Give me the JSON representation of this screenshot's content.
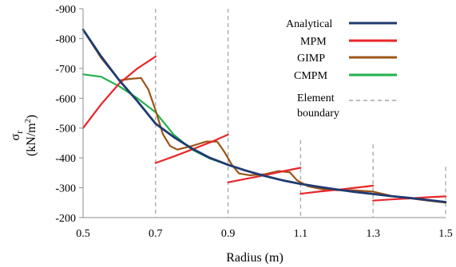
{
  "chart_data": {
    "type": "line",
    "title": "",
    "xlabel": "Radius (m)",
    "ylabel": {
      "symbol": "σ",
      "subscript": "r",
      "units_open": "(kN/m",
      "units_power": "2",
      "units_close": ")"
    },
    "xlim": [
      0.5,
      1.5
    ],
    "ylim": [
      -200,
      -900
    ],
    "x_ticks": [
      "0.5",
      "0.7",
      "0.9",
      "1.1",
      "1.3",
      "1.5"
    ],
    "y_ticks": [
      "-200",
      "-300",
      "-400",
      "-500",
      "-600",
      "-700",
      "-800",
      "-900"
    ],
    "grid": false,
    "legend_position": "top-right",
    "series": [
      {
        "name": "Analytical",
        "color": "#1f3b70",
        "style": "solid",
        "x": [
          0.5,
          0.55,
          0.6,
          0.65,
          0.7,
          0.75,
          0.8,
          0.85,
          0.9,
          0.95,
          1.0,
          1.05,
          1.1,
          1.15,
          1.2,
          1.25,
          1.3,
          1.35,
          1.4,
          1.45,
          1.5
        ],
        "y": [
          -830,
          -740,
          -660,
          -590,
          -515,
          -470,
          -432,
          -400,
          -377,
          -357,
          -340,
          -325,
          -313,
          -303,
          -294,
          -286,
          -279,
          -272,
          -266,
          -259,
          -252
        ]
      },
      {
        "name": "MPM",
        "color": "#e8262a",
        "style": "solid",
        "segments": [
          {
            "x": [
              0.5,
              0.55,
              0.6,
              0.65,
              0.7
            ],
            "y": [
              -500,
              -580,
              -650,
              -700,
              -740
            ]
          },
          {
            "x": [
              0.7,
              0.75,
              0.8,
              0.85,
              0.9
            ],
            "y": [
              -383,
              -405,
              -428,
              -452,
              -478
            ]
          },
          {
            "x": [
              0.9,
              0.95,
              1.0,
              1.05,
              1.1
            ],
            "y": [
              -318,
              -330,
              -342,
              -355,
              -367
            ]
          },
          {
            "x": [
              1.1,
              1.15,
              1.2,
              1.25,
              1.3
            ],
            "y": [
              -280,
              -287,
              -293,
              -300,
              -307
            ]
          },
          {
            "x": [
              1.3,
              1.35,
              1.4,
              1.45,
              1.5
            ],
            "y": [
              -257,
              -261,
              -264,
              -268,
              -271
            ]
          }
        ]
      },
      {
        "name": "GIMP",
        "color": "#9b5518",
        "style": "solid",
        "x": [
          0.5,
          0.55,
          0.6,
          0.63,
          0.66,
          0.68,
          0.7,
          0.72,
          0.74,
          0.76,
          0.8,
          0.84,
          0.87,
          0.89,
          0.91,
          0.93,
          0.96,
          1.0,
          1.04,
          1.07,
          1.09,
          1.12,
          1.16,
          1.2,
          1.25,
          1.3,
          1.35,
          1.4,
          1.45,
          1.5
        ],
        "y": [
          -830,
          -735,
          -660,
          -665,
          -668,
          -630,
          -560,
          -480,
          -440,
          -428,
          -440,
          -455,
          -455,
          -420,
          -378,
          -348,
          -342,
          -345,
          -356,
          -352,
          -325,
          -305,
          -295,
          -292,
          -291,
          -287,
          -273,
          -265,
          -257,
          -250
        ]
      },
      {
        "name": "CMPM",
        "color": "#22b24c",
        "style": "solid",
        "x": [
          0.5,
          0.55,
          0.6,
          0.65,
          0.7,
          0.75,
          0.8,
          0.85,
          0.9,
          0.95,
          1.0,
          1.05,
          1.1,
          1.15,
          1.2,
          1.25,
          1.3,
          1.35,
          1.4,
          1.45,
          1.5
        ],
        "y": [
          -680,
          -672,
          -640,
          -600,
          -553,
          -478,
          -428,
          -398,
          -377,
          -357,
          -340,
          -325,
          -313,
          -303,
          -294,
          -286,
          -279,
          -272,
          -266,
          -259,
          -252
        ]
      }
    ],
    "element_boundaries": {
      "name": "Element boundary",
      "name_lines": [
        "Element",
        "boundary"
      ],
      "color": "#a6a6a6",
      "style": "dashed",
      "lines": [
        {
          "x": 0.7,
          "y_top": -900
        },
        {
          "x": 0.9,
          "y_top": -900
        },
        {
          "x": 1.1,
          "y_top": -460
        },
        {
          "x": 1.3,
          "y_top": -445
        },
        {
          "x": 1.5,
          "y_top": -370
        }
      ]
    }
  }
}
